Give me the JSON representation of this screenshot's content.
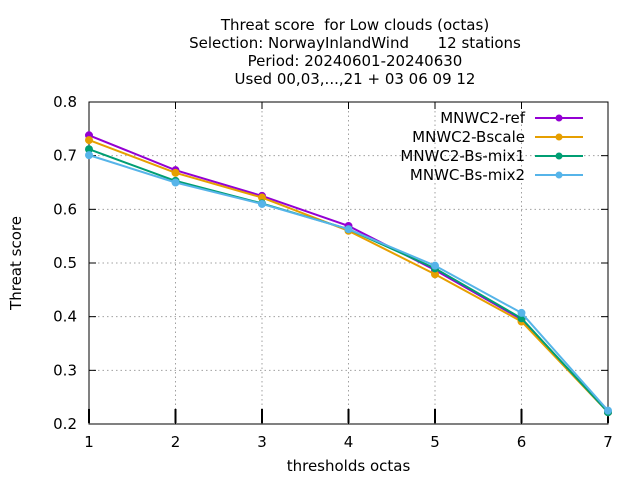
{
  "chart_data": {
    "type": "line",
    "title_lines": [
      "Threat score  for Low clouds (octas)",
      "Selection: NorwayInlandWind      12 stations",
      "Period: 20240601-20240630",
      "Used 00,03,...,21 + 03 06 09 12"
    ],
    "xlabel": "thresholds octas",
    "ylabel": "Threat score",
    "xlim": [
      1,
      7
    ],
    "ylim": [
      0.2,
      0.8
    ],
    "x_ticks": [
      1,
      2,
      3,
      4,
      5,
      6,
      7
    ],
    "y_ticks": [
      0.2,
      0.3,
      0.4,
      0.5,
      0.6,
      0.7,
      0.8
    ],
    "grid": true,
    "legend_position": "top-right",
    "x": [
      1,
      2,
      3,
      4,
      5,
      6,
      7
    ],
    "series": [
      {
        "name": "MNWC2-ref",
        "color": "#9400d3",
        "marker": "filled-circle",
        "values": [
          0.738,
          0.673,
          0.625,
          0.569,
          0.487,
          0.395,
          0.222
        ]
      },
      {
        "name": "MNWC2-Bscale",
        "color": "#e69f00",
        "marker": "filled-circle",
        "values": [
          0.729,
          0.668,
          0.622,
          0.56,
          0.479,
          0.391,
          0.222
        ]
      },
      {
        "name": "MNWC2-Bs-mix1",
        "color": "#009e73",
        "marker": "filled-circle",
        "values": [
          0.712,
          0.653,
          0.611,
          0.563,
          0.49,
          0.397,
          0.222
        ]
      },
      {
        "name": "MNWC-Bs-mix2",
        "color": "#56b4e9",
        "marker": "filled-circle",
        "values": [
          0.701,
          0.65,
          0.61,
          0.563,
          0.495,
          0.407,
          0.225
        ]
      }
    ],
    "bottom_markers_x": [
      1,
      2,
      3,
      4,
      5,
      6,
      7
    ]
  }
}
